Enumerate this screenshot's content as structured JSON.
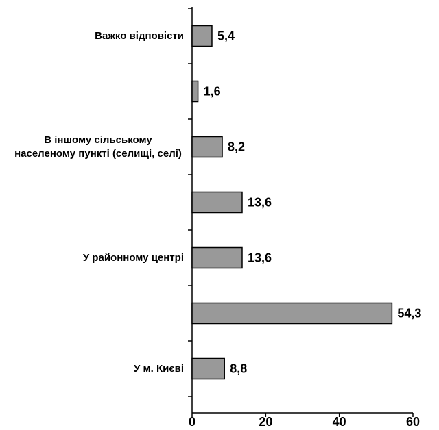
{
  "chart_data": {
    "type": "barh",
    "categories": [
      "Важко відповісти",
      null,
      "В іншому сільському населеному пункті (селищі, селі)",
      null,
      "У районному центрі",
      null,
      "У м. Києві"
    ],
    "values": [
      5.4,
      1.6,
      8.2,
      13.6,
      13.6,
      54.3,
      8.8
    ],
    "value_labels": [
      "5,4",
      "1,6",
      "8,2",
      "13,6",
      "13,6",
      "54,3",
      "8,8"
    ],
    "color": "#999999",
    "xlim": [
      0,
      60
    ],
    "xticks": [
      0,
      20,
      40,
      60
    ]
  }
}
